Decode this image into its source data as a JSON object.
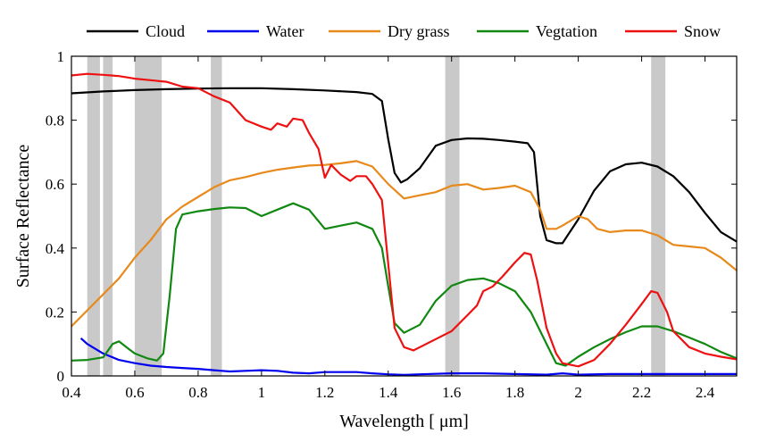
{
  "chart_data": {
    "type": "line",
    "title": "",
    "xlabel": "Wavelength [ μm]",
    "ylabel": "Surface Reflectance",
    "xlim": [
      0.4,
      2.5
    ],
    "ylim": [
      0,
      1
    ],
    "x_ticks": [
      0.4,
      0.6,
      0.8,
      1,
      1.2,
      1.4,
      1.6,
      1.8,
      2,
      2.2,
      2.4
    ],
    "x_tick_labels": [
      "0.4",
      "0.6",
      "0.8",
      "1",
      "1.2",
      "1.4",
      "1.6",
      "1.8",
      "2",
      "2.2",
      "2.4"
    ],
    "y_ticks": [
      0,
      0.2,
      0.4,
      0.6,
      0.8,
      1
    ],
    "y_tick_labels": [
      "0",
      "0.2",
      "0.4",
      "0.6",
      "0.8",
      "1"
    ],
    "grid": false,
    "legend_position": "top, outside plot area",
    "shaded_bands_um": [
      [
        0.45,
        0.49
      ],
      [
        0.5,
        0.53
      ],
      [
        0.6,
        0.685
      ],
      [
        0.84,
        0.875
      ],
      [
        1.58,
        1.625
      ],
      [
        2.23,
        2.275
      ]
    ],
    "shaded_band_color": "#c9c9c9",
    "series": [
      {
        "name": "Cloud",
        "color": "#000000",
        "x": [
          0.4,
          0.5,
          0.6,
          0.7,
          0.8,
          0.9,
          1.0,
          1.1,
          1.2,
          1.3,
          1.35,
          1.38,
          1.4,
          1.42,
          1.44,
          1.46,
          1.5,
          1.55,
          1.6,
          1.65,
          1.7,
          1.75,
          1.8,
          1.84,
          1.86,
          1.88,
          1.9,
          1.93,
          1.95,
          2.0,
          2.05,
          2.1,
          2.15,
          2.2,
          2.25,
          2.3,
          2.35,
          2.4,
          2.45,
          2.5
        ],
        "y": [
          0.884,
          0.89,
          0.894,
          0.897,
          0.899,
          0.9,
          0.9,
          0.897,
          0.893,
          0.888,
          0.882,
          0.86,
          0.74,
          0.635,
          0.605,
          0.615,
          0.65,
          0.72,
          0.738,
          0.743,
          0.742,
          0.738,
          0.733,
          0.728,
          0.7,
          0.5,
          0.425,
          0.415,
          0.415,
          0.49,
          0.58,
          0.64,
          0.662,
          0.667,
          0.655,
          0.625,
          0.575,
          0.51,
          0.45,
          0.42
        ]
      },
      {
        "name": "Water",
        "color": "#0000ee",
        "x": [
          0.43,
          0.45,
          0.5,
          0.55,
          0.6,
          0.65,
          0.7,
          0.75,
          0.8,
          0.85,
          0.9,
          0.95,
          1.0,
          1.05,
          1.1,
          1.15,
          1.2,
          1.3,
          1.35,
          1.4,
          1.45,
          1.5,
          1.6,
          1.7,
          1.8,
          1.9,
          1.95,
          2.0,
          2.1,
          2.2,
          2.3,
          2.4,
          2.5
        ],
        "y": [
          0.118,
          0.1,
          0.07,
          0.05,
          0.04,
          0.032,
          0.028,
          0.025,
          0.022,
          0.018,
          0.014,
          0.016,
          0.018,
          0.016,
          0.01,
          0.008,
          0.012,
          0.012,
          0.008,
          0.005,
          0.003,
          0.005,
          0.008,
          0.008,
          0.006,
          0.004,
          0.008,
          0.004,
          0.006,
          0.006,
          0.006,
          0.006,
          0.006
        ]
      },
      {
        "name": "Dry grass",
        "color": "#e8891c",
        "x": [
          0.4,
          0.45,
          0.5,
          0.55,
          0.6,
          0.65,
          0.7,
          0.75,
          0.8,
          0.85,
          0.9,
          0.95,
          1.0,
          1.05,
          1.1,
          1.15,
          1.2,
          1.25,
          1.3,
          1.35,
          1.4,
          1.45,
          1.5,
          1.55,
          1.6,
          1.65,
          1.7,
          1.75,
          1.8,
          1.85,
          1.88,
          1.9,
          1.93,
          1.95,
          2.0,
          2.03,
          2.06,
          2.1,
          2.15,
          2.2,
          2.25,
          2.3,
          2.35,
          2.4,
          2.45,
          2.5
        ],
        "y": [
          0.155,
          0.205,
          0.255,
          0.305,
          0.37,
          0.425,
          0.49,
          0.53,
          0.56,
          0.59,
          0.612,
          0.622,
          0.635,
          0.645,
          0.652,
          0.658,
          0.66,
          0.665,
          0.672,
          0.655,
          0.6,
          0.555,
          0.565,
          0.575,
          0.595,
          0.6,
          0.583,
          0.588,
          0.595,
          0.575,
          0.52,
          0.46,
          0.46,
          0.47,
          0.5,
          0.49,
          0.46,
          0.45,
          0.455,
          0.455,
          0.44,
          0.41,
          0.405,
          0.4,
          0.37,
          0.33
        ]
      },
      {
        "name": "Vegtation",
        "color": "#118811",
        "x": [
          0.4,
          0.45,
          0.5,
          0.53,
          0.55,
          0.58,
          0.6,
          0.64,
          0.67,
          0.69,
          0.71,
          0.73,
          0.75,
          0.8,
          0.85,
          0.9,
          0.95,
          1.0,
          1.05,
          1.1,
          1.15,
          1.2,
          1.25,
          1.3,
          1.35,
          1.38,
          1.4,
          1.42,
          1.45,
          1.5,
          1.55,
          1.6,
          1.65,
          1.7,
          1.75,
          1.8,
          1.85,
          1.9,
          1.93,
          1.96,
          2.0,
          2.05,
          2.1,
          2.15,
          2.2,
          2.25,
          2.3,
          2.35,
          2.4,
          2.45,
          2.5
        ],
        "y": [
          0.048,
          0.05,
          0.058,
          0.1,
          0.108,
          0.085,
          0.07,
          0.055,
          0.048,
          0.07,
          0.25,
          0.46,
          0.505,
          0.515,
          0.522,
          0.527,
          0.525,
          0.5,
          0.52,
          0.54,
          0.52,
          0.46,
          0.47,
          0.48,
          0.46,
          0.4,
          0.28,
          0.165,
          0.135,
          0.16,
          0.235,
          0.282,
          0.3,
          0.305,
          0.29,
          0.265,
          0.2,
          0.1,
          0.04,
          0.032,
          0.06,
          0.09,
          0.115,
          0.137,
          0.155,
          0.155,
          0.14,
          0.12,
          0.1,
          0.075,
          0.055
        ]
      },
      {
        "name": "Snow",
        "color": "#ee1111",
        "x": [
          0.4,
          0.45,
          0.5,
          0.55,
          0.6,
          0.65,
          0.7,
          0.75,
          0.8,
          0.85,
          0.9,
          0.95,
          1.0,
          1.03,
          1.05,
          1.08,
          1.1,
          1.13,
          1.15,
          1.18,
          1.2,
          1.22,
          1.25,
          1.28,
          1.3,
          1.33,
          1.35,
          1.38,
          1.4,
          1.42,
          1.45,
          1.48,
          1.5,
          1.55,
          1.6,
          1.65,
          1.68,
          1.7,
          1.73,
          1.76,
          1.8,
          1.83,
          1.85,
          1.87,
          1.9,
          1.93,
          1.95,
          2.0,
          2.05,
          2.1,
          2.15,
          2.2,
          2.23,
          2.25,
          2.28,
          2.3,
          2.35,
          2.4,
          2.45,
          2.5
        ],
        "y": [
          0.94,
          0.945,
          0.942,
          0.938,
          0.93,
          0.925,
          0.92,
          0.905,
          0.9,
          0.875,
          0.855,
          0.8,
          0.78,
          0.77,
          0.79,
          0.78,
          0.805,
          0.8,
          0.76,
          0.71,
          0.62,
          0.66,
          0.63,
          0.61,
          0.625,
          0.625,
          0.6,
          0.55,
          0.35,
          0.15,
          0.09,
          0.08,
          0.09,
          0.115,
          0.14,
          0.19,
          0.22,
          0.265,
          0.28,
          0.31,
          0.355,
          0.385,
          0.38,
          0.3,
          0.15,
          0.07,
          0.04,
          0.03,
          0.05,
          0.1,
          0.16,
          0.225,
          0.265,
          0.26,
          0.2,
          0.14,
          0.09,
          0.07,
          0.06,
          0.052
        ]
      }
    ]
  }
}
